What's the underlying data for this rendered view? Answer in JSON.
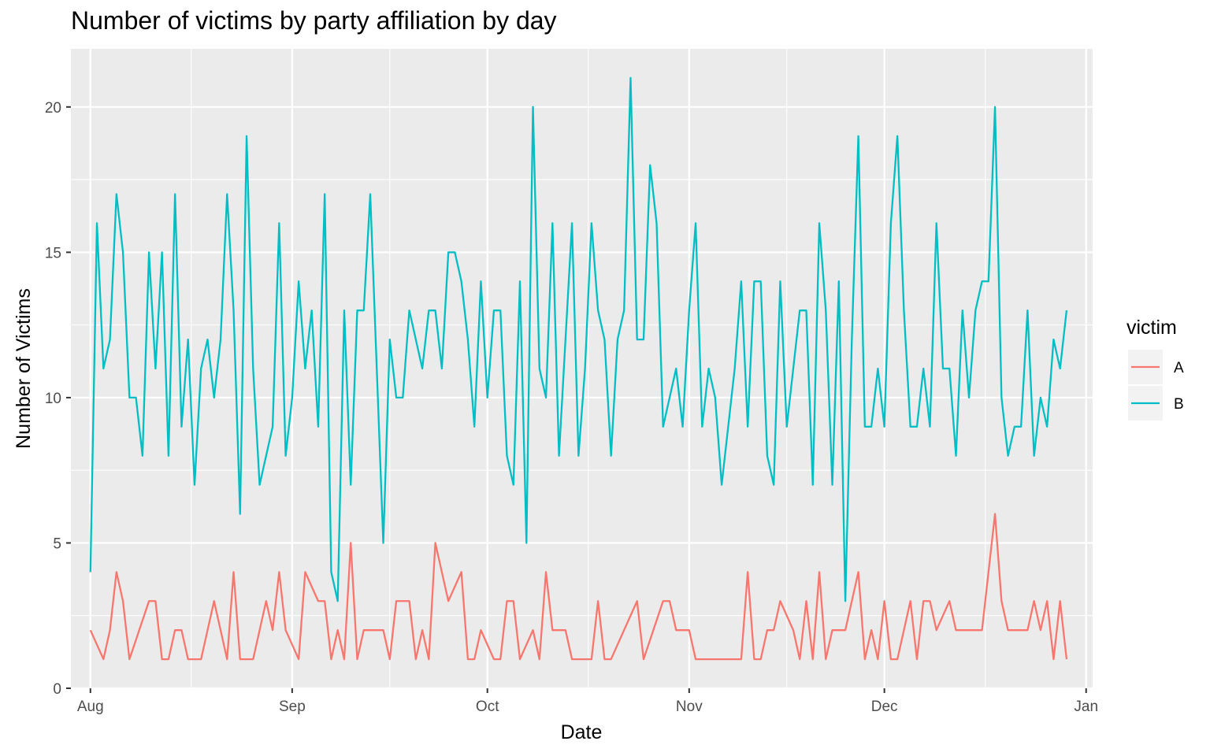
{
  "chart_data": {
    "type": "line",
    "title": "Number of victims by party affiliation by day",
    "xlabel": "Date",
    "ylabel": "Number of Victims",
    "x_range": [
      "2022-07-29",
      "2023-01-02"
    ],
    "ylim": [
      0,
      22
    ],
    "x_ticks": [
      {
        "date": "2022-08-01",
        "label": "Aug"
      },
      {
        "date": "2022-09-01",
        "label": "Sep"
      },
      {
        "date": "2022-10-01",
        "label": "Oct"
      },
      {
        "date": "2022-11-01",
        "label": "Nov"
      },
      {
        "date": "2022-12-01",
        "label": "Dec"
      },
      {
        "date": "2023-01-01",
        "label": "Jan"
      }
    ],
    "y_ticks": [
      0,
      5,
      10,
      15,
      20
    ],
    "grid": true,
    "legend": {
      "title": "victim",
      "position": "right"
    },
    "series": [
      {
        "name": "A",
        "color": "#F8766D",
        "points": [
          [
            "2022-08-01",
            2
          ],
          [
            "2022-08-03",
            1
          ],
          [
            "2022-08-04",
            2
          ],
          [
            "2022-08-05",
            4
          ],
          [
            "2022-08-06",
            3
          ],
          [
            "2022-08-07",
            1
          ],
          [
            "2022-08-10",
            3
          ],
          [
            "2022-08-11",
            3
          ],
          [
            "2022-08-12",
            1
          ],
          [
            "2022-08-13",
            1
          ],
          [
            "2022-08-14",
            2
          ],
          [
            "2022-08-15",
            2
          ],
          [
            "2022-08-16",
            1
          ],
          [
            "2022-08-18",
            1
          ],
          [
            "2022-08-20",
            3
          ],
          [
            "2022-08-22",
            1
          ],
          [
            "2022-08-23",
            4
          ],
          [
            "2022-08-24",
            1
          ],
          [
            "2022-08-26",
            1
          ],
          [
            "2022-08-28",
            3
          ],
          [
            "2022-08-29",
            2
          ],
          [
            "2022-08-30",
            4
          ],
          [
            "2022-08-31",
            2
          ],
          [
            "2022-09-02",
            1
          ],
          [
            "2022-09-03",
            4
          ],
          [
            "2022-09-05",
            3
          ],
          [
            "2022-09-06",
            3
          ],
          [
            "2022-09-07",
            1
          ],
          [
            "2022-09-08",
            2
          ],
          [
            "2022-09-09",
            1
          ],
          [
            "2022-09-10",
            5
          ],
          [
            "2022-09-11",
            1
          ],
          [
            "2022-09-12",
            2
          ],
          [
            "2022-09-15",
            2
          ],
          [
            "2022-09-16",
            1
          ],
          [
            "2022-09-17",
            3
          ],
          [
            "2022-09-19",
            3
          ],
          [
            "2022-09-20",
            1
          ],
          [
            "2022-09-21",
            2
          ],
          [
            "2022-09-22",
            1
          ],
          [
            "2022-09-23",
            5
          ],
          [
            "2022-09-25",
            3
          ],
          [
            "2022-09-27",
            4
          ],
          [
            "2022-09-28",
            1
          ],
          [
            "2022-09-29",
            1
          ],
          [
            "2022-09-30",
            2
          ],
          [
            "2022-10-02",
            1
          ],
          [
            "2022-10-03",
            1
          ],
          [
            "2022-10-04",
            3
          ],
          [
            "2022-10-05",
            3
          ],
          [
            "2022-10-06",
            1
          ],
          [
            "2022-10-08",
            2
          ],
          [
            "2022-10-09",
            1
          ],
          [
            "2022-10-10",
            4
          ],
          [
            "2022-10-11",
            2
          ],
          [
            "2022-10-13",
            2
          ],
          [
            "2022-10-14",
            1
          ],
          [
            "2022-10-17",
            1
          ],
          [
            "2022-10-18",
            3
          ],
          [
            "2022-10-19",
            1
          ],
          [
            "2022-10-20",
            1
          ],
          [
            "2022-10-24",
            3
          ],
          [
            "2022-10-25",
            1
          ],
          [
            "2022-10-28",
            3
          ],
          [
            "2022-10-29",
            3
          ],
          [
            "2022-10-30",
            2
          ],
          [
            "2022-11-01",
            2
          ],
          [
            "2022-11-02",
            1
          ],
          [
            "2022-11-09",
            1
          ],
          [
            "2022-11-10",
            4
          ],
          [
            "2022-11-11",
            1
          ],
          [
            "2022-11-12",
            1
          ],
          [
            "2022-11-13",
            2
          ],
          [
            "2022-11-14",
            2
          ],
          [
            "2022-11-15",
            3
          ],
          [
            "2022-11-17",
            2
          ],
          [
            "2022-11-18",
            1
          ],
          [
            "2022-11-19",
            3
          ],
          [
            "2022-11-20",
            1
          ],
          [
            "2022-11-21",
            4
          ],
          [
            "2022-11-22",
            1
          ],
          [
            "2022-11-23",
            2
          ],
          [
            "2022-11-25",
            2
          ],
          [
            "2022-11-27",
            4
          ],
          [
            "2022-11-28",
            1
          ],
          [
            "2022-11-29",
            2
          ],
          [
            "2022-11-30",
            1
          ],
          [
            "2022-12-01",
            3
          ],
          [
            "2022-12-02",
            1
          ],
          [
            "2022-12-03",
            1
          ],
          [
            "2022-12-05",
            3
          ],
          [
            "2022-12-06",
            1
          ],
          [
            "2022-12-07",
            3
          ],
          [
            "2022-12-08",
            3
          ],
          [
            "2022-12-09",
            2
          ],
          [
            "2022-12-11",
            3
          ],
          [
            "2022-12-12",
            2
          ],
          [
            "2022-12-16",
            2
          ],
          [
            "2022-12-18",
            6
          ],
          [
            "2022-12-19",
            3
          ],
          [
            "2022-12-20",
            2
          ],
          [
            "2022-12-23",
            2
          ],
          [
            "2022-12-24",
            3
          ],
          [
            "2022-12-25",
            2
          ],
          [
            "2022-12-26",
            3
          ],
          [
            "2022-12-27",
            1
          ],
          [
            "2022-12-28",
            3
          ],
          [
            "2022-12-29",
            1
          ]
        ]
      },
      {
        "name": "B",
        "color": "#00BFC4",
        "points": [
          [
            "2022-08-01",
            4
          ],
          [
            "2022-08-02",
            16
          ],
          [
            "2022-08-03",
            11
          ],
          [
            "2022-08-04",
            12
          ],
          [
            "2022-08-05",
            17
          ],
          [
            "2022-08-06",
            15
          ],
          [
            "2022-08-07",
            10
          ],
          [
            "2022-08-08",
            10
          ],
          [
            "2022-08-09",
            8
          ],
          [
            "2022-08-10",
            15
          ],
          [
            "2022-08-11",
            11
          ],
          [
            "2022-08-12",
            15
          ],
          [
            "2022-08-13",
            8
          ],
          [
            "2022-08-14",
            17
          ],
          [
            "2022-08-15",
            9
          ],
          [
            "2022-08-16",
            12
          ],
          [
            "2022-08-17",
            7
          ],
          [
            "2022-08-18",
            11
          ],
          [
            "2022-08-19",
            12
          ],
          [
            "2022-08-20",
            10
          ],
          [
            "2022-08-21",
            12
          ],
          [
            "2022-08-22",
            17
          ],
          [
            "2022-08-23",
            13
          ],
          [
            "2022-08-24",
            6
          ],
          [
            "2022-08-25",
            19
          ],
          [
            "2022-08-26",
            11
          ],
          [
            "2022-08-27",
            7
          ],
          [
            "2022-08-29",
            9
          ],
          [
            "2022-08-30",
            16
          ],
          [
            "2022-08-31",
            8
          ],
          [
            "2022-09-01",
            10
          ],
          [
            "2022-09-02",
            14
          ],
          [
            "2022-09-03",
            11
          ],
          [
            "2022-09-04",
            13
          ],
          [
            "2022-09-05",
            9
          ],
          [
            "2022-09-06",
            17
          ],
          [
            "2022-09-07",
            4
          ],
          [
            "2022-09-08",
            3
          ],
          [
            "2022-09-09",
            13
          ],
          [
            "2022-09-10",
            7
          ],
          [
            "2022-09-11",
            13
          ],
          [
            "2022-09-12",
            13
          ],
          [
            "2022-09-13",
            17
          ],
          [
            "2022-09-14",
            11
          ],
          [
            "2022-09-15",
            5
          ],
          [
            "2022-09-16",
            12
          ],
          [
            "2022-09-17",
            10
          ],
          [
            "2022-09-18",
            10
          ],
          [
            "2022-09-19",
            13
          ],
          [
            "2022-09-21",
            11
          ],
          [
            "2022-09-22",
            13
          ],
          [
            "2022-09-23",
            13
          ],
          [
            "2022-09-24",
            11
          ],
          [
            "2022-09-25",
            15
          ],
          [
            "2022-09-26",
            15
          ],
          [
            "2022-09-27",
            14
          ],
          [
            "2022-09-28",
            12
          ],
          [
            "2022-09-29",
            9
          ],
          [
            "2022-09-30",
            14
          ],
          [
            "2022-10-01",
            10
          ],
          [
            "2022-10-02",
            13
          ],
          [
            "2022-10-03",
            13
          ],
          [
            "2022-10-04",
            8
          ],
          [
            "2022-10-05",
            7
          ],
          [
            "2022-10-06",
            14
          ],
          [
            "2022-10-07",
            5
          ],
          [
            "2022-10-08",
            20
          ],
          [
            "2022-10-09",
            11
          ],
          [
            "2022-10-10",
            10
          ],
          [
            "2022-10-11",
            16
          ],
          [
            "2022-10-12",
            8
          ],
          [
            "2022-10-13",
            12
          ],
          [
            "2022-10-14",
            16
          ],
          [
            "2022-10-15",
            8
          ],
          [
            "2022-10-16",
            11
          ],
          [
            "2022-10-17",
            16
          ],
          [
            "2022-10-18",
            13
          ],
          [
            "2022-10-19",
            12
          ],
          [
            "2022-10-20",
            8
          ],
          [
            "2022-10-21",
            12
          ],
          [
            "2022-10-22",
            13
          ],
          [
            "2022-10-23",
            21
          ],
          [
            "2022-10-24",
            12
          ],
          [
            "2022-10-25",
            12
          ],
          [
            "2022-10-26",
            18
          ],
          [
            "2022-10-27",
            16
          ],
          [
            "2022-10-28",
            9
          ],
          [
            "2022-10-30",
            11
          ],
          [
            "2022-10-31",
            9
          ],
          [
            "2022-11-01",
            13
          ],
          [
            "2022-11-02",
            16
          ],
          [
            "2022-11-03",
            9
          ],
          [
            "2022-11-04",
            11
          ],
          [
            "2022-11-05",
            10
          ],
          [
            "2022-11-06",
            7
          ],
          [
            "2022-11-07",
            9
          ],
          [
            "2022-11-08",
            11
          ],
          [
            "2022-11-09",
            14
          ],
          [
            "2022-11-10",
            9
          ],
          [
            "2022-11-11",
            14
          ],
          [
            "2022-11-12",
            14
          ],
          [
            "2022-11-13",
            8
          ],
          [
            "2022-11-14",
            7
          ],
          [
            "2022-11-15",
            14
          ],
          [
            "2022-11-16",
            9
          ],
          [
            "2022-11-18",
            13
          ],
          [
            "2022-11-19",
            13
          ],
          [
            "2022-11-20",
            7
          ],
          [
            "2022-11-21",
            16
          ],
          [
            "2022-11-22",
            13
          ],
          [
            "2022-11-23",
            7
          ],
          [
            "2022-11-24",
            14
          ],
          [
            "2022-11-25",
            3
          ],
          [
            "2022-11-26",
            12
          ],
          [
            "2022-11-27",
            19
          ],
          [
            "2022-11-28",
            9
          ],
          [
            "2022-11-29",
            9
          ],
          [
            "2022-11-30",
            11
          ],
          [
            "2022-12-01",
            9
          ],
          [
            "2022-12-02",
            16
          ],
          [
            "2022-12-03",
            19
          ],
          [
            "2022-12-04",
            13
          ],
          [
            "2022-12-05",
            9
          ],
          [
            "2022-12-06",
            9
          ],
          [
            "2022-12-07",
            11
          ],
          [
            "2022-12-08",
            9
          ],
          [
            "2022-12-09",
            16
          ],
          [
            "2022-12-10",
            11
          ],
          [
            "2022-12-11",
            11
          ],
          [
            "2022-12-12",
            8
          ],
          [
            "2022-12-13",
            13
          ],
          [
            "2022-12-14",
            10
          ],
          [
            "2022-12-15",
            13
          ],
          [
            "2022-12-16",
            14
          ],
          [
            "2022-12-17",
            14
          ],
          [
            "2022-12-18",
            20
          ],
          [
            "2022-12-19",
            10
          ],
          [
            "2022-12-20",
            8
          ],
          [
            "2022-12-21",
            9
          ],
          [
            "2022-12-22",
            9
          ],
          [
            "2022-12-23",
            13
          ],
          [
            "2022-12-24",
            8
          ],
          [
            "2022-12-25",
            10
          ],
          [
            "2022-12-26",
            9
          ],
          [
            "2022-12-27",
            12
          ],
          [
            "2022-12-28",
            11
          ],
          [
            "2022-12-29",
            13
          ]
        ]
      }
    ]
  }
}
